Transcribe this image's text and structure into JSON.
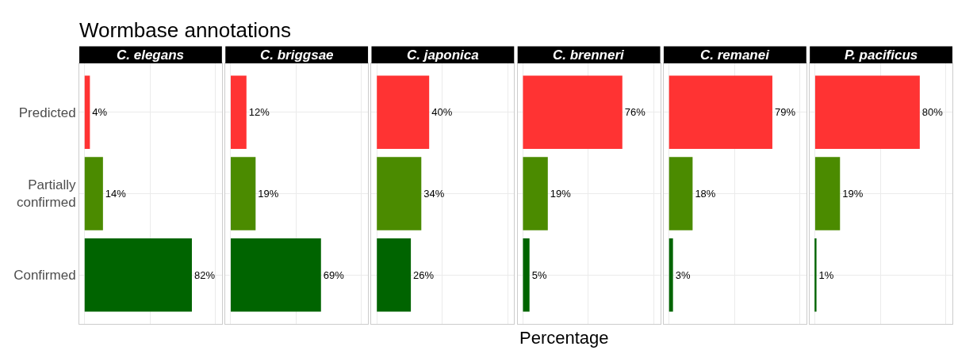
{
  "chart_data": [
    {
      "type": "bar",
      "orientation": "horizontal",
      "title": "C. elegans",
      "annotations": [
        "Wormbase annotations"
      ],
      "categories": [
        "Predicted",
        "Partially confirmed",
        "Confirmed"
      ],
      "values": [
        4,
        14,
        82
      ],
      "value_labels": [
        "4%",
        "14%",
        "82%"
      ],
      "colors": [
        "#ff3333",
        "#4b8b00",
        "#006400"
      ],
      "grid": true,
      "tick_labels": "y"
    },
    {
      "type": "bar",
      "orientation": "horizontal",
      "title": "C. briggsae",
      "categories": [
        "Predicted",
        "Partially confirmed",
        "Confirmed"
      ],
      "values": [
        12,
        19,
        69
      ],
      "value_labels": [
        "12%",
        "19%",
        "69%"
      ],
      "colors": [
        "#ff3333",
        "#4b8b00",
        "#006400"
      ],
      "grid": true,
      "tick_labels": false
    },
    {
      "type": "bar",
      "orientation": "horizontal",
      "title": "C. japonica",
      "categories": [
        "Predicted",
        "Partially confirmed",
        "Confirmed"
      ],
      "values": [
        40,
        34,
        26
      ],
      "value_labels": [
        "40%",
        "34%",
        "26%"
      ],
      "colors": [
        "#ff3333",
        "#4b8b00",
        "#006400"
      ],
      "grid": true,
      "tick_labels": false
    },
    {
      "type": "bar",
      "orientation": "horizontal",
      "title": "C. brenneri",
      "xlabel": "Percentage",
      "categories": [
        "Predicted",
        "Partially confirmed",
        "Confirmed"
      ],
      "values": [
        76,
        19,
        5
      ],
      "value_labels": [
        "76%",
        "19%",
        "5%"
      ],
      "colors": [
        "#ff3333",
        "#4b8b00",
        "#006400"
      ],
      "grid": true,
      "tick_labels": false
    },
    {
      "type": "bar",
      "orientation": "horizontal",
      "title": "C. remanei",
      "categories": [
        "Predicted",
        "Partially confirmed",
        "Confirmed"
      ],
      "values": [
        79,
        18,
        3
      ],
      "value_labels": [
        "79%",
        "18%",
        "3%"
      ],
      "colors": [
        "#ff3333",
        "#4b8b00",
        "#006400"
      ],
      "grid": true,
      "tick_labels": false
    },
    {
      "type": "bar",
      "orientation": "horizontal",
      "title": "P. pacificus",
      "categories": [
        "Predicted",
        "Partially confirmed",
        "Confirmed"
      ],
      "values": [
        80,
        19,
        1
      ],
      "value_labels": [
        "80%",
        "19%",
        "1%"
      ],
      "colors": [
        "#ff3333",
        "#4b8b00",
        "#006400"
      ],
      "grid": true,
      "tick_labels": false
    }
  ]
}
